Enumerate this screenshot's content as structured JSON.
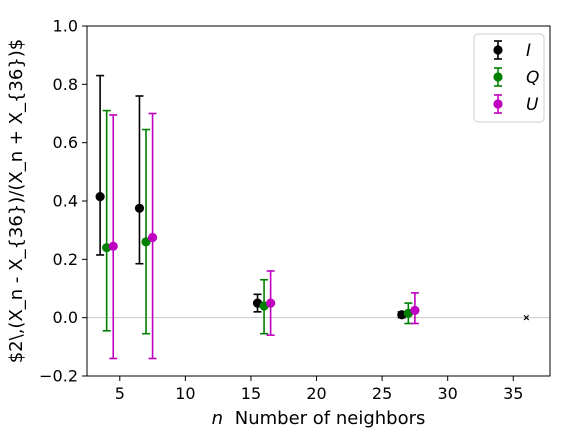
{
  "chart_data": {
    "type": "scatter",
    "title": "",
    "xlabel": "$n$ Number of neighbors",
    "xlabel_parts": {
      "italic": "n",
      "text": "Number of neighbors"
    },
    "ylabel": "$2\\,(X_n - X_{36})/(X_n + X_{36})$",
    "xlim": [
      2.5,
      37.8
    ],
    "ylim": [
      -0.2,
      1.0
    ],
    "xticks": [
      5,
      10,
      15,
      20,
      25,
      30,
      35
    ],
    "xtick_labels": [
      "5",
      "10",
      "15",
      "20",
      "25",
      "30",
      "35"
    ],
    "yticks": [
      -0.2,
      0.0,
      0.2,
      0.4,
      0.6,
      0.8,
      1.0
    ],
    "ytick_labels": [
      "−0.2",
      "0.0",
      "0.2",
      "0.4",
      "0.6",
      "0.8",
      "1.0"
    ],
    "grid": false,
    "reference_line": {
      "y": 0.0,
      "color": "#c8c8c8"
    },
    "legend": {
      "position": "top-right"
    },
    "series": [
      {
        "name": "I",
        "color": "#000000",
        "x": [
          3.5,
          6.5,
          15.5,
          26.5
        ],
        "y": [
          0.415,
          0.375,
          0.05,
          0.01
        ],
        "yerr_low": [
          0.215,
          0.185,
          0.02,
          0.0
        ],
        "yerr_high": [
          0.83,
          0.76,
          0.08,
          0.02
        ]
      },
      {
        "name": "Q",
        "color": "#008000",
        "x": [
          4.0,
          7.0,
          16.0,
          27.0
        ],
        "y": [
          0.24,
          0.26,
          0.04,
          0.015
        ],
        "yerr_low": [
          -0.045,
          -0.055,
          -0.055,
          -0.02
        ],
        "yerr_high": [
          0.71,
          0.645,
          0.13,
          0.05
        ]
      },
      {
        "name": "U",
        "color": "#c000c0",
        "x": [
          4.5,
          7.5,
          16.5,
          27.5
        ],
        "y": [
          0.245,
          0.275,
          0.05,
          0.025
        ],
        "yerr_low": [
          -0.14,
          -0.14,
          -0.06,
          -0.02
        ],
        "yerr_high": [
          0.695,
          0.7,
          0.16,
          0.085
        ]
      }
    ],
    "reference_marker": {
      "x": 36,
      "y": 0.0,
      "marker": "x",
      "color": "#000000"
    }
  }
}
